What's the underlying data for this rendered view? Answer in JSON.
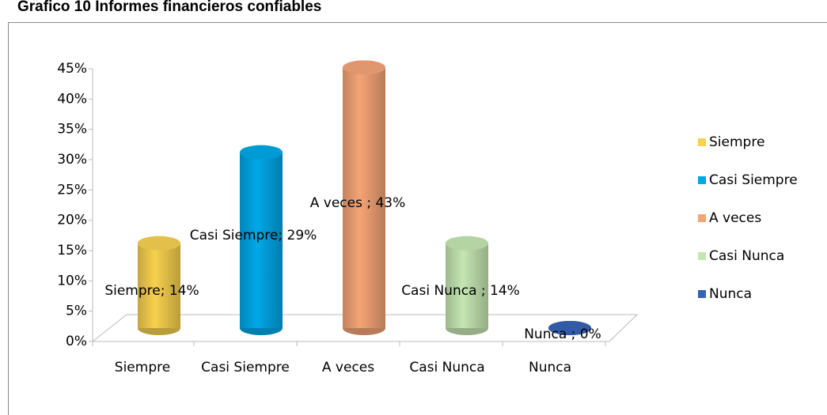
{
  "chart_data": {
    "type": "bar3d",
    "title": "Grafico 10 Informes financieros confiables",
    "categories": [
      "Siempre",
      "Casi Siempre",
      "A veces",
      "Casi Nunca",
      "Nunca"
    ],
    "values": [
      14,
      29,
      43,
      14,
      0
    ],
    "value_labels": [
      "Siempre; 14%",
      "Casi Siempre; 29%",
      "A veces ; 43%",
      "Casi Nunca ; 14%",
      "Nunca ; 0%"
    ],
    "colors": [
      "#f7d14f",
      "#00a8e8",
      "#f4a476",
      "#c5e6b2",
      "#3563b5"
    ],
    "ylim": [
      0,
      45
    ],
    "yticks": [
      {
        "value": 0,
        "label": "0%"
      },
      {
        "value": 5,
        "label": "5%"
      },
      {
        "value": 10,
        "label": "10%"
      },
      {
        "value": 15,
        "label": "15%"
      },
      {
        "value": 20,
        "label": "20%"
      },
      {
        "value": 25,
        "label": "25%"
      },
      {
        "value": 30,
        "label": "30%"
      },
      {
        "value": 35,
        "label": "35%"
      },
      {
        "value": 40,
        "label": "40%"
      },
      {
        "value": 45,
        "label": "45%"
      }
    ],
    "legend": "right"
  }
}
